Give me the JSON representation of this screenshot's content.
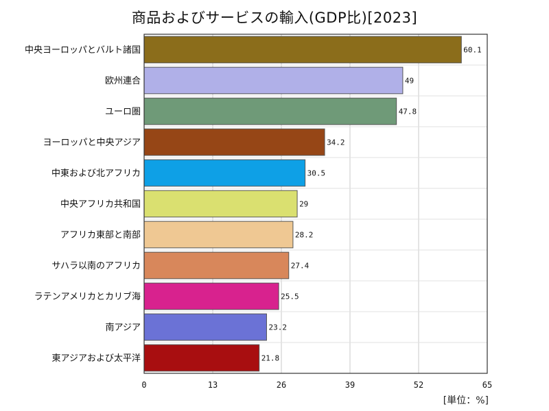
{
  "chart_data": {
    "type": "bar",
    "orientation": "horizontal",
    "title": "商品およびサービスの輸入(GDP比)[2023]",
    "unit_label": "[単位：%]",
    "categories": [
      "中央ヨーロッパとバルト諸国",
      "欧州連合",
      "ユーロ圏",
      "ヨーロッパと中央アジア",
      "中東および北アフリカ",
      "中央アフリカ共和国",
      "アフリカ東部と南部",
      "サハラ以南のアフリカ",
      "ラテンアメリカとカリブ海",
      "南アジア",
      "東アジアおよび太平洋"
    ],
    "values": [
      60.1,
      49,
      47.8,
      34.2,
      30.5,
      29,
      28.2,
      27.4,
      25.5,
      23.2,
      21.8
    ],
    "value_labels": [
      "60.1",
      "49",
      "47.8",
      "34.2",
      "30.5",
      "29",
      "28.2",
      "27.4",
      "25.5",
      "23.2",
      "21.8"
    ],
    "colors": [
      "#8b6d1b",
      "#b0b0e8",
      "#6f9a78",
      "#964616",
      "#0ea0e6",
      "#dae070",
      "#efc893",
      "#d8875b",
      "#d8228e",
      "#6b72d6",
      "#a80e10"
    ],
    "xlim": [
      0,
      65
    ],
    "xticks": [
      0,
      13,
      26,
      39,
      52,
      65
    ],
    "grid": true
  }
}
